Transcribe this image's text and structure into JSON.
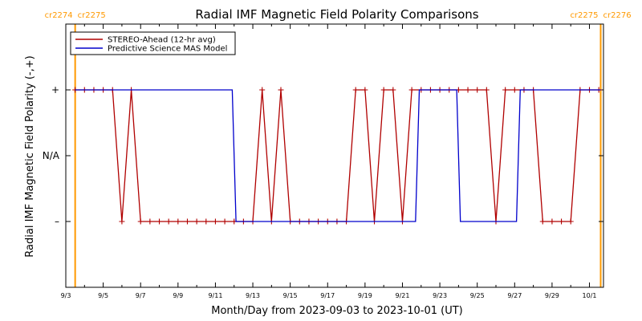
{
  "chart_data": {
    "type": "line",
    "title": "Radial IMF Magnetic Field Polarity Comparisons",
    "xlabel": "Month/Day from 2023-09-03 to 2023-10-01 (UT)",
    "ylabel": "Radial IMF Magnetic Field Polarity (-,+)",
    "x_tick_labels": [
      "9/3",
      "9/5",
      "9/7",
      "9/9",
      "9/11",
      "9/13",
      "9/15",
      "9/17",
      "9/19",
      "9/21",
      "9/23",
      "9/25",
      "9/27",
      "9/29",
      "10/1"
    ],
    "x_tick_days": [
      0,
      2,
      4,
      6,
      8,
      10,
      12,
      14,
      16,
      18,
      20,
      22,
      24,
      26,
      28
    ],
    "xlim": [
      0,
      28.75
    ],
    "ylim": [
      -2,
      2
    ],
    "y_tick_labels": [
      {
        "value": 1,
        "label": "+"
      },
      {
        "value": 0,
        "label": "N/A"
      },
      {
        "value": -1,
        "label": "–"
      }
    ],
    "legend": {
      "position": "top-left",
      "entries": [
        {
          "name": "STEREO-Ahead (12-hr avg)",
          "color": "#b00000"
        },
        {
          "name": "Predictive Science MAS Model",
          "color": "#0000cc"
        }
      ]
    },
    "carrington_markers": [
      {
        "day": 0.5,
        "left_label": "cr2274",
        "right_label": "cr2275",
        "color": "#ff9900"
      },
      {
        "day": 28.6,
        "left_label": "cr2275",
        "right_label": "cr2276",
        "color": "#ff9900"
      }
    ],
    "series": [
      {
        "name": "STEREO-Ahead (12-hr avg)",
        "color": "#b00000",
        "marker": "+",
        "x": [
          0.5,
          1.0,
          1.5,
          2.0,
          2.5,
          3.0,
          3.5,
          4.0,
          4.5,
          5.0,
          5.5,
          6.0,
          6.5,
          7.0,
          7.5,
          8.0,
          8.5,
          9.0,
          9.5,
          10.0,
          10.5,
          11.0,
          11.5,
          12.0,
          12.5,
          13.0,
          13.5,
          14.0,
          14.5,
          15.0,
          15.5,
          16.0,
          16.5,
          17.0,
          17.5,
          18.0,
          18.5,
          19.0,
          19.5,
          20.0,
          20.5,
          21.0,
          21.5,
          22.0,
          22.5,
          23.0,
          23.5,
          24.0,
          24.5,
          25.0,
          25.5,
          26.0,
          26.5,
          27.0,
          27.5,
          28.0,
          28.5
        ],
        "values": [
          1,
          1,
          1,
          1,
          1,
          -1,
          1,
          -1,
          -1,
          -1,
          -1,
          -1,
          -1,
          -1,
          -1,
          -1,
          -1,
          -1,
          -1,
          -1,
          1,
          -1,
          1,
          -1,
          -1,
          -1,
          -1,
          -1,
          -1,
          -1,
          1,
          1,
          -1,
          1,
          1,
          -1,
          1,
          1,
          1,
          1,
          1,
          1,
          1,
          1,
          1,
          -1,
          1,
          1,
          1,
          1,
          -1,
          -1,
          -1,
          -1,
          1,
          1,
          1
        ]
      },
      {
        "name": "Predictive Science MAS Model",
        "color": "#0000cc",
        "x": [
          0.5,
          8.9,
          9.1,
          18.7,
          18.9,
          20.9,
          21.1,
          24.1,
          24.3,
          28.6
        ],
        "values": [
          1,
          1,
          -1,
          -1,
          1,
          1,
          -1,
          -1,
          1,
          1
        ]
      }
    ]
  }
}
